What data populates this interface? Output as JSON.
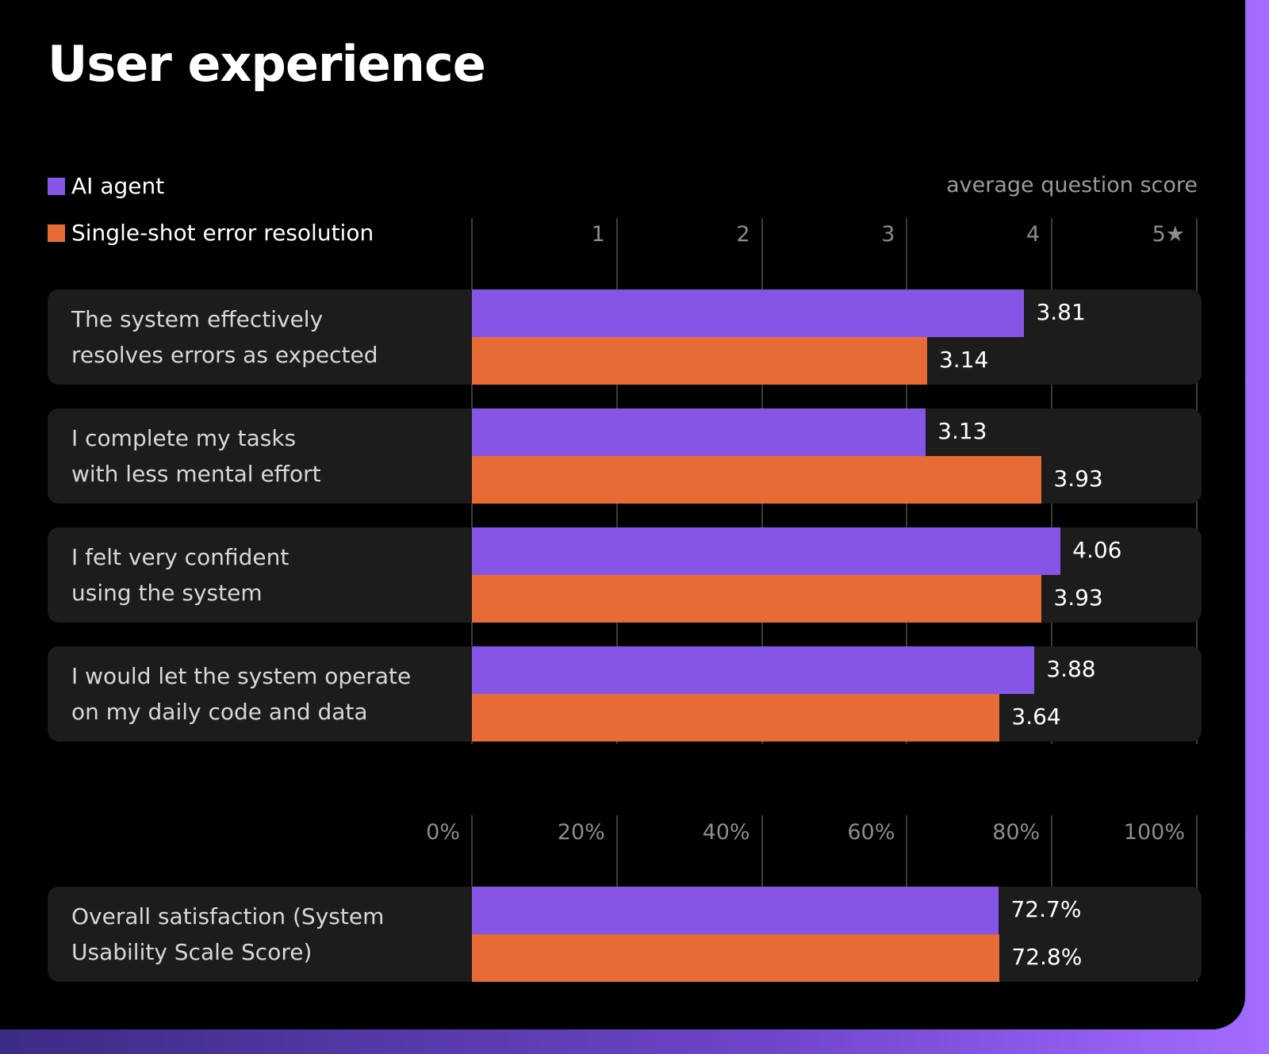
{
  "title": "User experience",
  "legend": [
    {
      "label": "AI agent",
      "color": "#8755e6"
    },
    {
      "label": "Single-shot error resolution",
      "color": "#e66b34"
    }
  ],
  "score_axis": {
    "caption": "average question score",
    "ticks": [
      "1",
      "2",
      "3",
      "4",
      "5★"
    ],
    "min": 0,
    "max": 5
  },
  "percent_axis": {
    "ticks": [
      "0%",
      "20%",
      "40%",
      "60%",
      "80%",
      "100%"
    ],
    "min": 0,
    "max": 100
  },
  "chart_data": [
    {
      "type": "bar",
      "orientation": "horizontal",
      "xlabel": "average question score",
      "xlim": [
        0,
        5
      ],
      "categories": [
        "The system effectively\nresolves errors as expected",
        "I complete my tasks\nwith less mental effort",
        "I felt very confident\nusing the system",
        "I would let the system operate\non my daily code and data"
      ],
      "series": [
        {
          "name": "AI agent",
          "values": [
            3.81,
            3.13,
            4.06,
            3.88
          ],
          "labels": [
            "3.81",
            "3.13",
            "4.06",
            "3.88"
          ]
        },
        {
          "name": "Single-shot error resolution",
          "values": [
            3.14,
            3.93,
            3.93,
            3.64
          ],
          "labels": [
            "3.14",
            "3.93",
            "3.93",
            "3.64"
          ]
        }
      ],
      "grid": true,
      "legend": "top-left"
    },
    {
      "type": "bar",
      "orientation": "horizontal",
      "xlim": [
        0,
        100
      ],
      "categories": [
        "Overall satisfaction (System\nUsability Scale Score)"
      ],
      "series": [
        {
          "name": "AI agent",
          "values": [
            72.7
          ],
          "labels": [
            "72.7%"
          ]
        },
        {
          "name": "Single-shot error resolution",
          "values": [
            72.8
          ],
          "labels": [
            "72.8%"
          ]
        }
      ],
      "grid": true
    }
  ]
}
